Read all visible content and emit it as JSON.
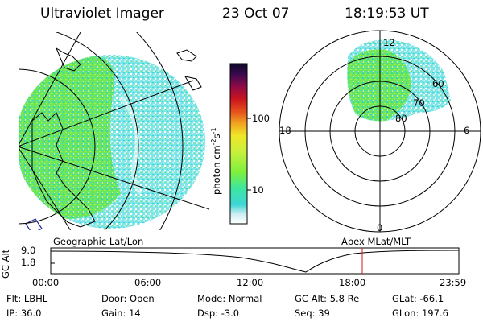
{
  "header": {
    "instrument": "Ultraviolet Imager",
    "date": "23 Oct 07",
    "time": "18:19:53 UT"
  },
  "colorbar": {
    "label": "photon cm",
    "label_sup1": "-2",
    "label_s": "s",
    "label_sup2": "-1",
    "ticks": [
      {
        "label": "100",
        "value": 100
      },
      {
        "label": "10",
        "value": 10
      }
    ],
    "scale": "log",
    "colors": [
      "#ffffff",
      "#cfeef0",
      "#3cd6d6",
      "#3ce6a0",
      "#7cf03c",
      "#c8f03c",
      "#f0e628",
      "#f0a01e",
      "#e6501e",
      "#c8141e",
      "#8c0a46",
      "#3c0a50",
      "#0a0a28"
    ]
  },
  "polar": {
    "mlt_labels": [
      {
        "label": "12",
        "pos": "top"
      },
      {
        "label": "18",
        "pos": "left"
      },
      {
        "label": "6",
        "pos": "right"
      },
      {
        "label": "0",
        "pos": "bottom"
      }
    ],
    "mlat_labels": [
      "60",
      "70",
      "80"
    ]
  },
  "map_label_left": "Geographic Lat/Lon",
  "map_label_right": "Apex MLat/MLT",
  "alt_plot": {
    "ylabel": "GC Alt",
    "yticks": [
      "9.0",
      "1.8"
    ],
    "xticks": [
      "00:00",
      "06:00",
      "12:00",
      "18:00",
      "23:59"
    ],
    "current_time": "18:19:53"
  },
  "footer": {
    "row1": [
      {
        "key": "Flt:",
        "value": "LBHL"
      },
      {
        "key": "Door:",
        "value": "Open"
      },
      {
        "key": "Mode:",
        "value": "Normal"
      },
      {
        "key": "GC Alt:",
        "value": "5.8 Re"
      },
      {
        "key": "GLat:",
        "value": "-66.1"
      }
    ],
    "row2": [
      {
        "key": "IP:",
        "value": "36.0"
      },
      {
        "key": "Gain:",
        "value": "14"
      },
      {
        "key": "Dsp:",
        "value": "-3.0"
      },
      {
        "key": "Seq:",
        "value": "39"
      },
      {
        "key": "GLon:",
        "value": "197.6"
      }
    ]
  }
}
